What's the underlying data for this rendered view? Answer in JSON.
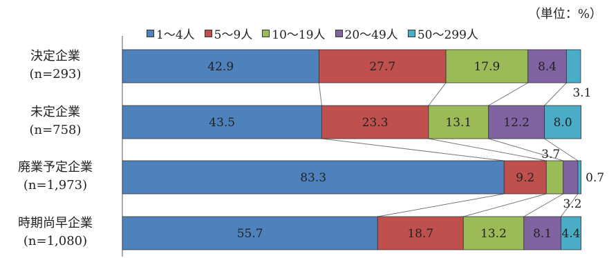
{
  "unit_note": "（単位：%）",
  "chart_data": {
    "type": "bar",
    "orientation": "horizontal",
    "stacked": true,
    "percent": true,
    "xlim": [
      0,
      100
    ],
    "series": [
      {
        "name": "1～4人",
        "color": "#4f81bd",
        "values": [
          42.9,
          43.5,
          83.3,
          55.7
        ]
      },
      {
        "name": "5～9人",
        "color": "#c0504d",
        "values": [
          27.7,
          23.3,
          9.2,
          18.7
        ]
      },
      {
        "name": "10～19人",
        "color": "#9bbb59",
        "values": [
          17.9,
          13.1,
          3.7,
          13.2
        ]
      },
      {
        "name": "20～49人",
        "color": "#8064a2",
        "values": [
          8.4,
          12.2,
          3.2,
          8.1
        ]
      },
      {
        "name": "50～299人",
        "color": "#4bacc6",
        "values": [
          3.1,
          8.0,
          0.7,
          4.4
        ]
      }
    ],
    "rows": [
      {
        "name": "決定企業",
        "n": "(n=293)"
      },
      {
        "name": "未定企業",
        "n": "(n=758)"
      },
      {
        "name": "廃業予定企業",
        "n": "(n=1,973)"
      },
      {
        "name": "時期尚早企業",
        "n": "(n=1,080)"
      }
    ],
    "labels": [
      [
        "42.9",
        "27.7",
        "17.9",
        "8.4",
        "3.1"
      ],
      [
        "43.5",
        "23.3",
        "13.1",
        "12.2",
        "8.0"
      ],
      [
        "83.3",
        "9.2",
        "3.7",
        "3.2",
        "0.7"
      ],
      [
        "55.7",
        "18.7",
        "13.2",
        "8.1",
        "4.4"
      ]
    ],
    "connector_lines": true,
    "legend_position": "top"
  }
}
